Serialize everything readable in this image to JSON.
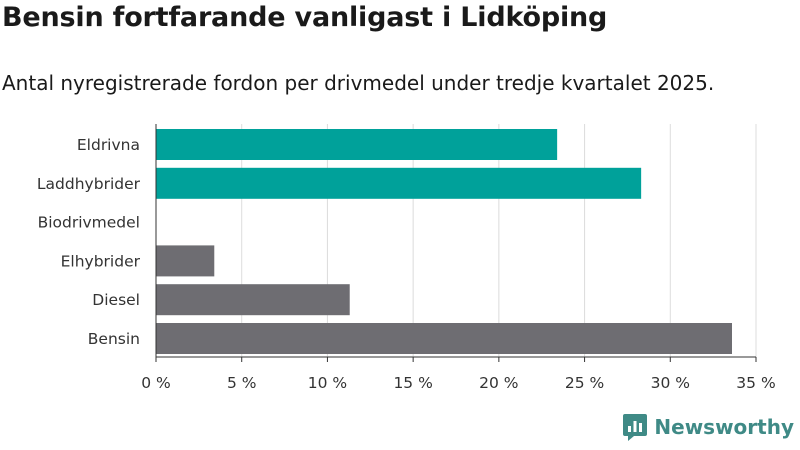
{
  "title": "Bensin fortfarande vanligast i Lidköping",
  "subtitle": "Antal nyregistrerade fordon per drivmedel under tredje kvartalet 2025.",
  "brand": "Newsworthy",
  "colors": {
    "highlight": "#00a19a",
    "neutral": "#6e6d72",
    "grid": "#dcdcdc"
  },
  "chart_data": {
    "type": "bar",
    "orientation": "horizontal",
    "categories": [
      "Eldrivna",
      "Laddhybrider",
      "Biodrivmedel",
      "Elhybrider",
      "Diesel",
      "Bensin"
    ],
    "values": [
      23.4,
      28.3,
      0,
      3.4,
      11.3,
      33.6
    ],
    "bar_colors": [
      "highlight",
      "highlight",
      "neutral",
      "neutral",
      "neutral",
      "neutral"
    ],
    "xlim": [
      0,
      35
    ],
    "xticks": [
      0,
      5,
      10,
      15,
      20,
      25,
      30,
      35
    ],
    "xtick_labels": [
      "0 %",
      "5 %",
      "10 %",
      "15 %",
      "20 %",
      "25 %",
      "30 %",
      "35 %"
    ],
    "grid": true
  }
}
